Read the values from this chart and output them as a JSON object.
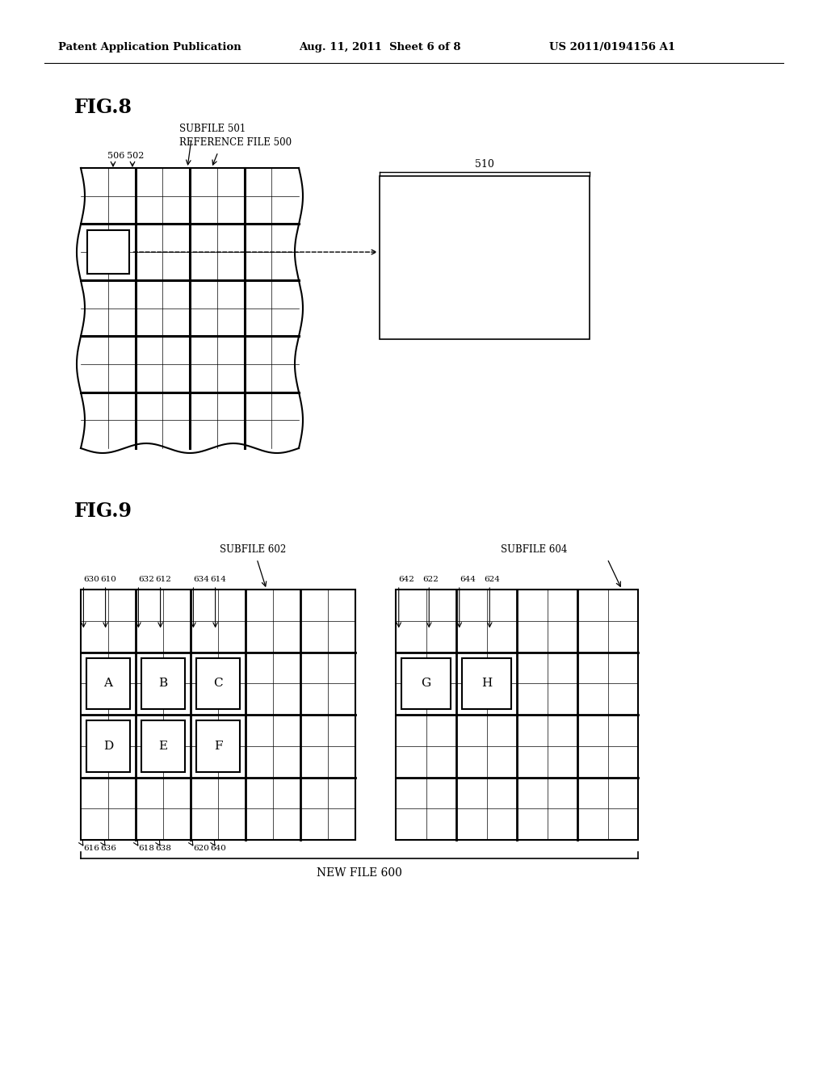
{
  "background_color": "#ffffff",
  "header_left": "Patent Application Publication",
  "header_center": "Aug. 11, 2011  Sheet 6 of 8",
  "header_right": "US 2011/0194156 A1",
  "fig8_title": "FIG.8",
  "fig9_title": "FIG.9",
  "fig8_subfile_label": "SUBFILE 501",
  "fig8_reffile_label": "REFERENCE FILE 500",
  "fig8_box_label": "510",
  "fig8_label_506": "506",
  "fig8_label_502": "502",
  "fig9_subfile602": "SUBFILE 602",
  "fig9_subfile604": "SUBFILE 604",
  "fig9_newfile": "NEW FILE 600",
  "text_color": "#000000",
  "grid_color": "#000000"
}
